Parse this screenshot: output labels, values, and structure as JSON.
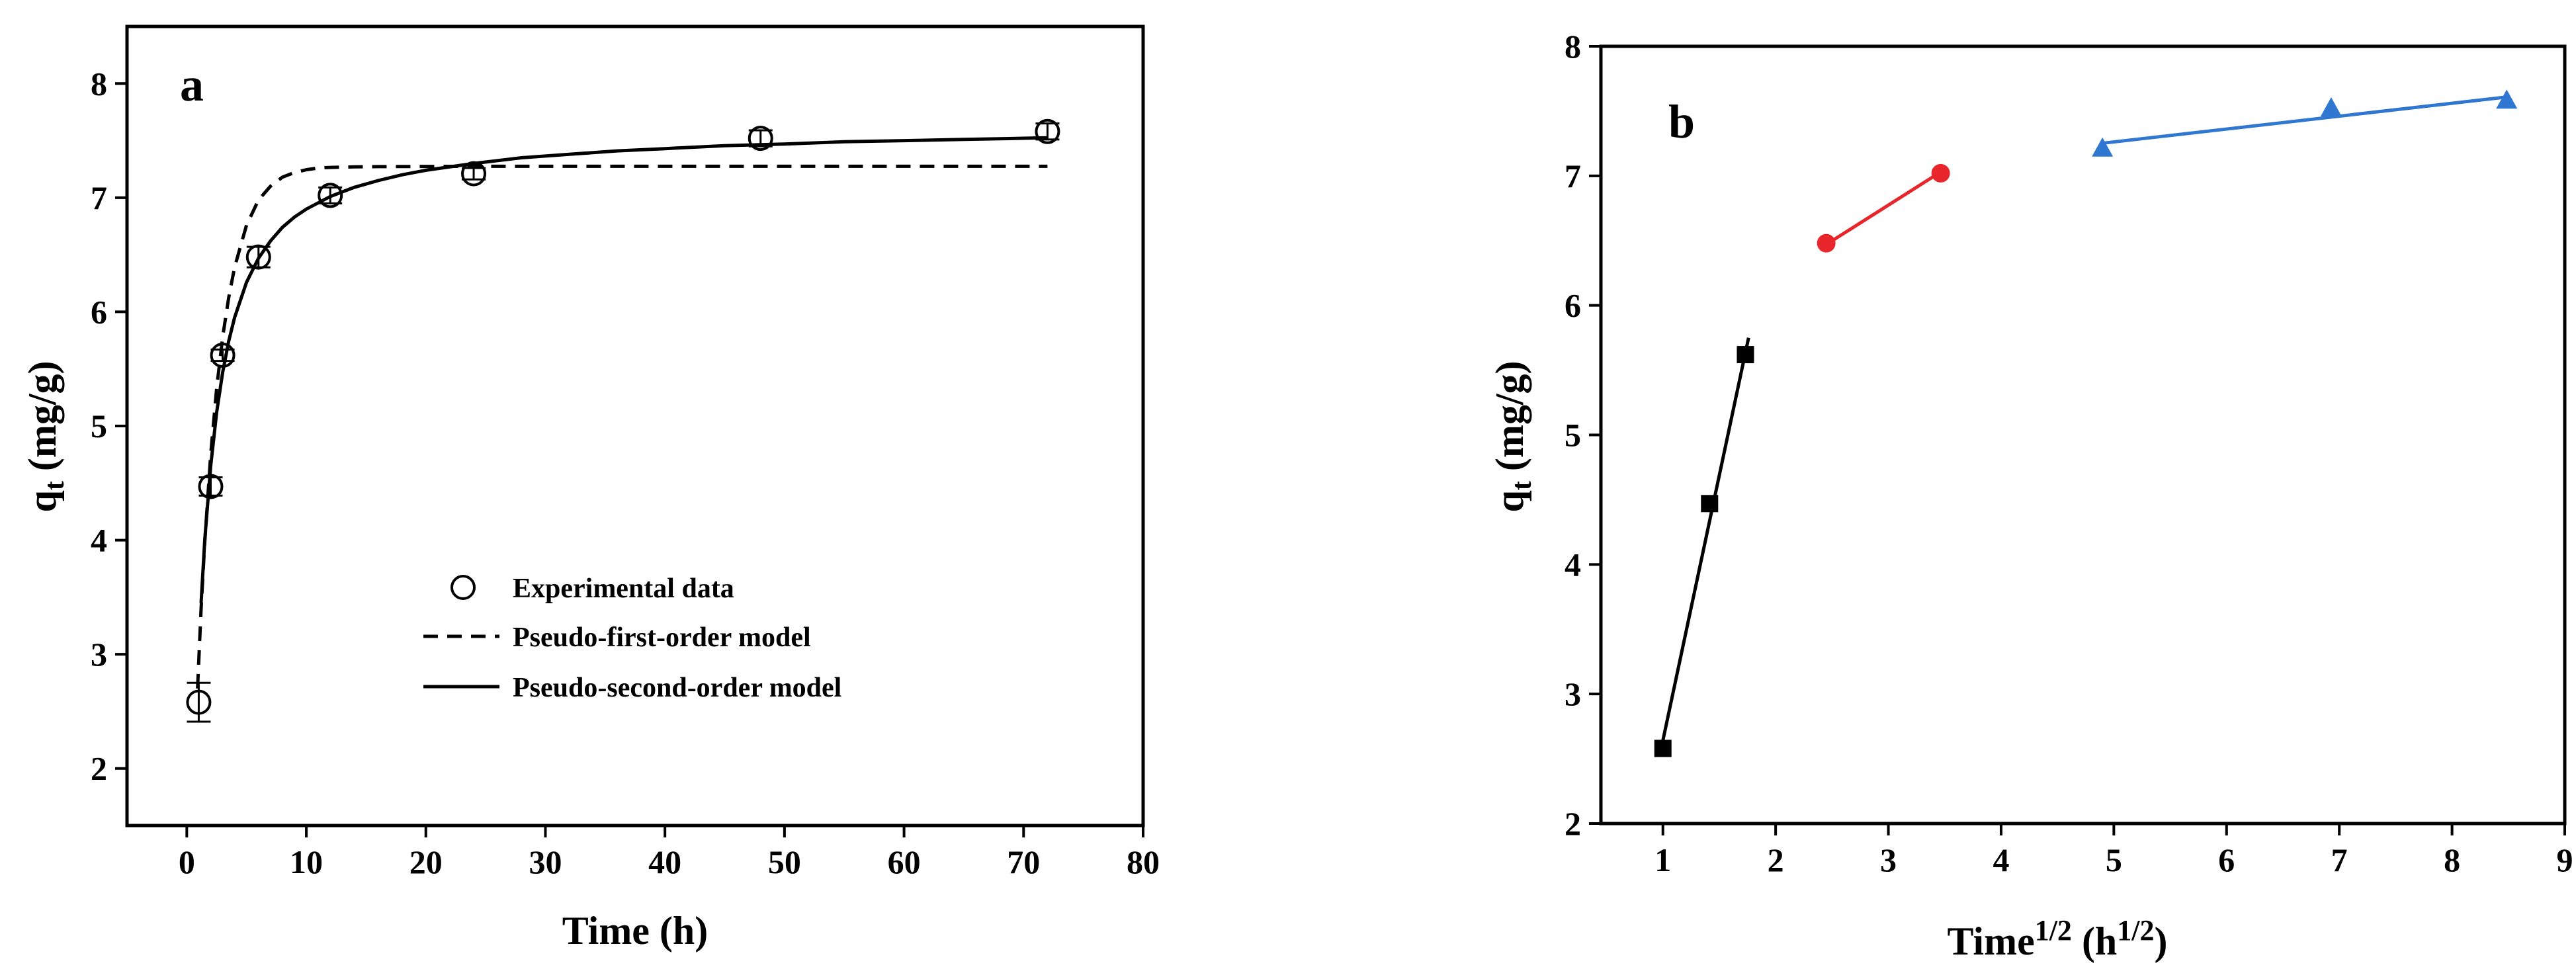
{
  "chart_data": [
    {
      "panel_label": "a",
      "type": "scatter",
      "xlabel": "Time (h)",
      "ylabel_main": "q",
      "ylabel_sub": "t",
      "ylabel_unit": " (mg/g)",
      "xlim": [
        -5,
        80
      ],
      "ylim": [
        1.5,
        8.5
      ],
      "xticks": [
        0,
        10,
        20,
        30,
        40,
        50,
        60,
        70,
        80
      ],
      "yticks": [
        2,
        3,
        4,
        5,
        6,
        7,
        8
      ],
      "legend_position": "center-right",
      "series": [
        {
          "name": "Experimental data",
          "kind": "points",
          "marker": "open-circle",
          "x": [
            1,
            2,
            3,
            6,
            12,
            24,
            48,
            72
          ],
          "y": [
            2.58,
            4.47,
            5.62,
            6.48,
            7.02,
            7.21,
            7.52,
            7.58
          ],
          "err": [
            0.17,
            0.08,
            0.05,
            0.09,
            0.07,
            0.05,
            0.07,
            0.07
          ]
        },
        {
          "name": "Pseudo-first-order model",
          "kind": "dashed-line",
          "x": [
            0.9,
            1.2,
            1.5,
            2,
            2.5,
            3,
            3.5,
            4,
            5,
            6,
            7,
            8,
            9,
            10,
            11,
            12,
            14,
            16,
            20,
            25,
            30,
            40,
            50,
            60,
            72
          ],
          "y": [
            2.7,
            3.4,
            3.98,
            4.75,
            5.33,
            5.78,
            6.12,
            6.39,
            6.76,
            6.98,
            7.1,
            7.18,
            7.22,
            7.245,
            7.26,
            7.265,
            7.27,
            7.272,
            7.274,
            7.275,
            7.275,
            7.275,
            7.275,
            7.275,
            7.275
          ]
        },
        {
          "name": "Pseudo-second-order model",
          "kind": "solid-line",
          "x": [
            1.2,
            1.5,
            2,
            2.5,
            3,
            3.5,
            4,
            5,
            6,
            7,
            8,
            9,
            10,
            12,
            14,
            16,
            18,
            20,
            24,
            28,
            32,
            36,
            40,
            45,
            50,
            55,
            60,
            65,
            72
          ],
          "y": [
            3.45,
            4.0,
            4.65,
            5.12,
            5.47,
            5.74,
            5.95,
            6.26,
            6.47,
            6.62,
            6.74,
            6.83,
            6.9,
            7.01,
            7.09,
            7.15,
            7.2,
            7.24,
            7.3,
            7.35,
            7.38,
            7.41,
            7.43,
            7.455,
            7.47,
            7.49,
            7.5,
            7.51,
            7.525
          ]
        }
      ]
    },
    {
      "panel_label": "b",
      "type": "line",
      "xlabel_main": "Time",
      "xlabel_sup": "1/2",
      "xlabel_unit_open": " (h",
      "xlabel_unit_sup": "1/2",
      "xlabel_unit_close": ")",
      "ylabel_main": "q",
      "ylabel_sub": "t",
      "ylabel_unit": " (mg/g)",
      "xlim": [
        0.45,
        9
      ],
      "ylim": [
        2,
        8
      ],
      "xticks": [
        1,
        2,
        3,
        4,
        5,
        6,
        7,
        8,
        9
      ],
      "yticks": [
        2,
        3,
        4,
        5,
        6,
        7,
        8
      ],
      "series": [
        {
          "stage": 1,
          "marker": "square",
          "color": "#000000",
          "x": [
            1.0,
            1.414,
            1.732
          ],
          "y": [
            2.58,
            4.47,
            5.62
          ]
        },
        {
          "stage": 2,
          "marker": "circle",
          "color": "#e8252b",
          "x": [
            2.449,
            3.464
          ],
          "y": [
            6.48,
            7.02
          ]
        },
        {
          "stage": 3,
          "marker": "triangle",
          "color": "#2f77d0",
          "x": [
            4.899,
            6.928,
            8.485
          ],
          "y": [
            7.21,
            7.52,
            7.58
          ]
        }
      ],
      "fit_lines": [
        {
          "stage": 1,
          "x": [
            0.98,
            1.76
          ],
          "y": [
            2.56,
            5.75
          ]
        },
        {
          "stage": 2,
          "x": [
            2.449,
            3.464
          ],
          "y": [
            6.47,
            7.03
          ]
        },
        {
          "stage": 3,
          "x": [
            4.88,
            8.5
          ],
          "y": [
            7.25,
            7.61
          ]
        }
      ]
    }
  ]
}
